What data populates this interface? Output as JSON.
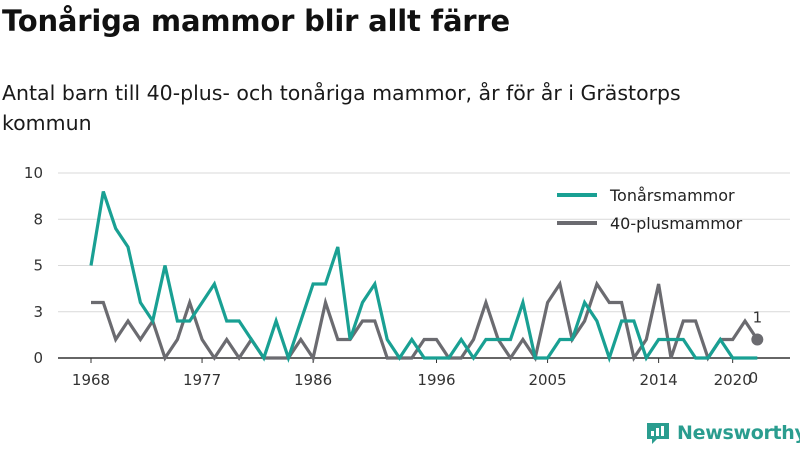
{
  "title": "Tonåriga mammor blir allt färre",
  "subtitle": "Antal barn till 40-plus- och tonåriga mammor, år för år i Grästorps kommun",
  "brand": "Newsworthy",
  "colors": {
    "teenage": "#19a093",
    "forty_plus": "#6b6b70",
    "grid": "#d9d9d9",
    "axis": "#333333",
    "brand": "#2a9d8f"
  },
  "chart_data": {
    "type": "line",
    "x": [
      1968,
      1969,
      1970,
      1971,
      1972,
      1973,
      1974,
      1975,
      1976,
      1977,
      1978,
      1979,
      1980,
      1981,
      1982,
      1983,
      1984,
      1985,
      1986,
      1987,
      1988,
      1989,
      1990,
      1991,
      1992,
      1993,
      1994,
      1995,
      1996,
      1997,
      1998,
      1999,
      2000,
      2001,
      2002,
      2003,
      2004,
      2005,
      2006,
      2007,
      2008,
      2009,
      2010,
      2011,
      2012,
      2013,
      2014,
      2015,
      2016,
      2017,
      2018,
      2019,
      2020,
      2021,
      2022
    ],
    "series": [
      {
        "name": "Tonårsmammor",
        "values": [
          5,
          9,
          7,
          6,
          3,
          2,
          5,
          2,
          2,
          3,
          4,
          2,
          2,
          1,
          0,
          2,
          0,
          2,
          4,
          4,
          6,
          1,
          3,
          4,
          1,
          0,
          1,
          0,
          0,
          0,
          1,
          0,
          1,
          1,
          1,
          3,
          0,
          0,
          1,
          1,
          3,
          2,
          0,
          2,
          2,
          0,
          1,
          1,
          1,
          0,
          0,
          1,
          0,
          0,
          0
        ]
      },
      {
        "name": "40-plusmammor",
        "values": [
          3,
          3,
          1,
          2,
          1,
          2,
          0,
          1,
          3,
          1,
          0,
          1,
          0,
          1,
          0,
          0,
          0,
          1,
          0,
          3,
          1,
          1,
          2,
          2,
          0,
          0,
          0,
          1,
          1,
          0,
          0,
          1,
          3,
          1,
          0,
          1,
          0,
          3,
          4,
          1,
          2,
          4,
          3,
          3,
          0,
          1,
          4,
          0,
          2,
          2,
          0,
          1,
          1,
          2,
          1
        ]
      }
    ],
    "x_ticks": [
      "1968",
      "1977",
      "1986",
      "1996",
      "2005",
      "2014",
      "2020"
    ],
    "y_ticks": [
      "0",
      "3",
      "5",
      "8",
      "10"
    ],
    "y_tick_values": [
      0,
      2.5,
      5,
      7.5,
      10
    ],
    "xlim": [
      1968,
      2022
    ],
    "ylim": [
      0,
      10
    ],
    "end_labels": [
      "1",
      "0"
    ],
    "legend": [
      "Tonårsmammor",
      "40-plusmammor"
    ],
    "legend_position": "top-right",
    "grid": true
  }
}
